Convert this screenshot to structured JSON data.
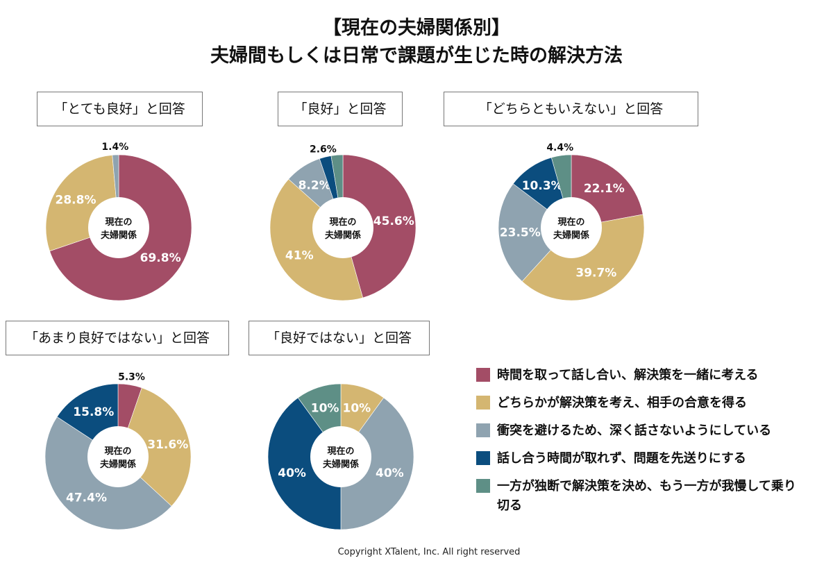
{
  "title_line1": "【現在の夫婦関係別】",
  "title_line2": "夫婦間もしくは日常で課題が生じた時の解決方法",
  "center_label": [
    "現在の",
    "夫婦関係"
  ],
  "colors": [
    "#a34d66",
    "#d4b671",
    "#8fa3b0",
    "#0b4d7e",
    "#5e8f86"
  ],
  "legend": [
    "時間を取って話し合い、解決策を一緒に考える",
    "どちらかが解決策を考え、相手の合意を得る",
    "衝突を避けるため、深く話さないようにしている",
    "話し合う時間が取れず、問題を先送りにする",
    "一方が独断で解決策を決め、もう一方が我慢して乗り切る"
  ],
  "copyright": "Copyright XTalent, Inc. All right reserved",
  "chart_data": [
    {
      "type": "pie",
      "title": "「とても良好」と回答",
      "values": [
        69.8,
        28.8,
        1.4,
        0,
        0
      ],
      "labels": [
        "69.8%",
        "28.8%",
        "1.4%",
        "",
        ""
      ]
    },
    {
      "type": "pie",
      "title": "「良好」と回答",
      "values": [
        45.6,
        41,
        8.2,
        2.6,
        2.6
      ],
      "labels": [
        "45.6%",
        "41%",
        "8.2%",
        "2.6%",
        ""
      ]
    },
    {
      "type": "pie",
      "title": "「どちらともいえない」と回答",
      "values": [
        22.1,
        39.7,
        23.5,
        10.3,
        4.4
      ],
      "labels": [
        "22.1%",
        "39.7%",
        "23.5%",
        "10.3%",
        "4.4%"
      ]
    },
    {
      "type": "pie",
      "title": "「あまり良好ではない」と回答",
      "values": [
        5.3,
        31.6,
        47.4,
        15.8,
        0
      ],
      "labels": [
        "5.3%",
        "31.6%",
        "47.4%",
        "15.8%",
        ""
      ]
    },
    {
      "type": "pie",
      "title": "「良好ではない」と回答",
      "values": [
        0,
        10,
        40,
        40,
        10
      ],
      "labels": [
        "",
        "10%",
        "40%",
        "40%",
        "10%"
      ]
    }
  ]
}
